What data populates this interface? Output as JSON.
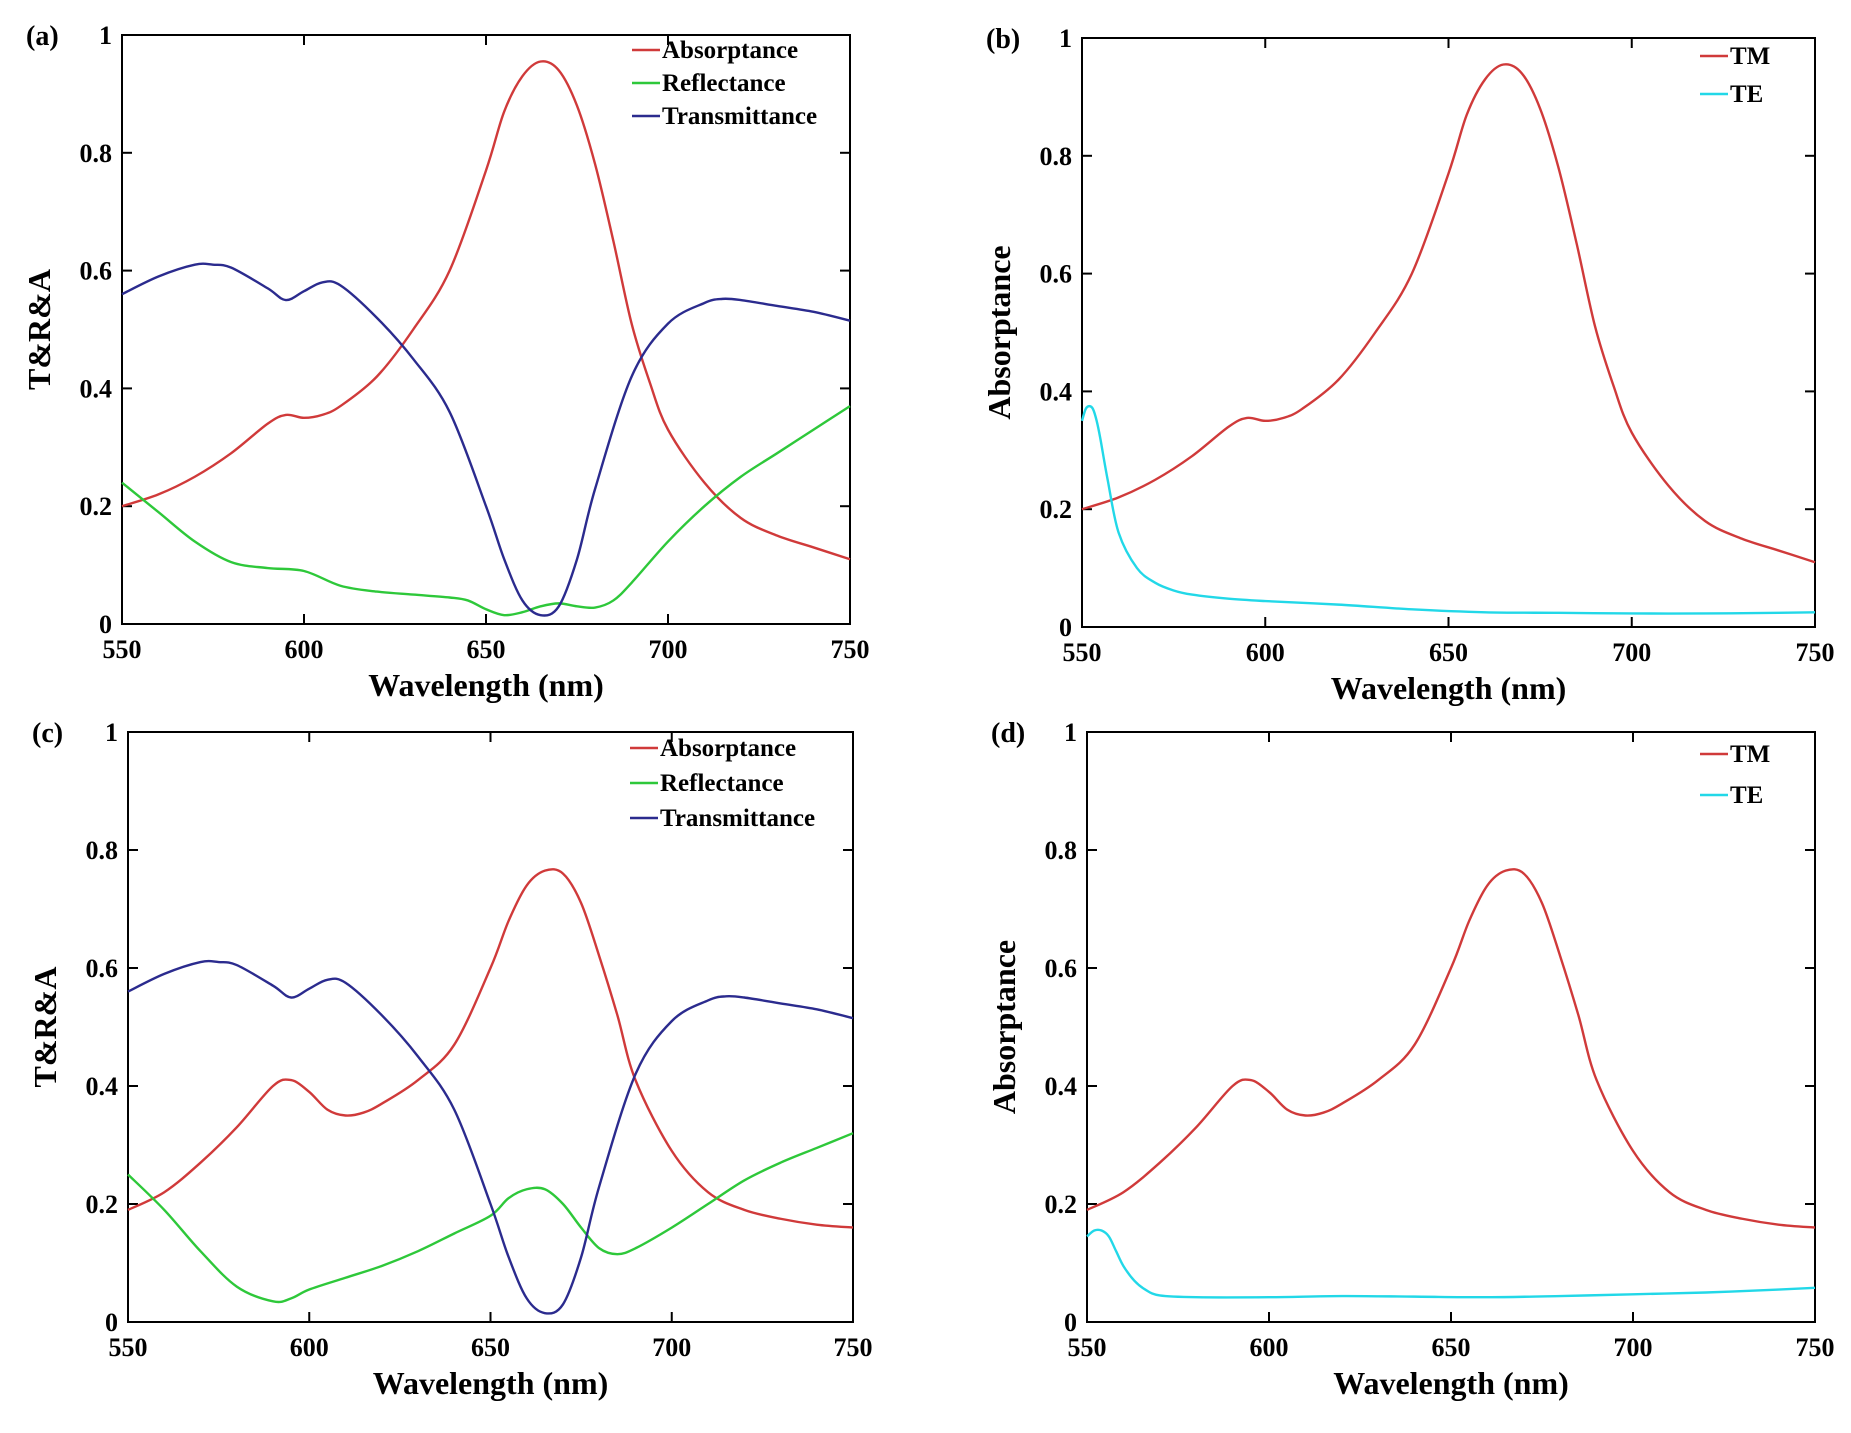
{
  "figure": {
    "panels": [
      {
        "id": "a",
        "tag": "(a)",
        "legend_position": "top-right"
      },
      {
        "id": "b",
        "tag": "(b)",
        "legend_position": "top-right"
      },
      {
        "id": "c",
        "tag": "(c)",
        "legend_position": "top-right"
      },
      {
        "id": "d",
        "tag": "(d)",
        "legend_position": "top-right"
      }
    ]
  },
  "chart_data": [
    {
      "panel": "a",
      "type": "line",
      "title": "",
      "xlabel": "Wavelength (nm)",
      "ylabel": "T&R&A",
      "xlim": [
        550,
        750
      ],
      "ylim": [
        0,
        1
      ],
      "xticks": [
        550,
        600,
        650,
        700,
        750
      ],
      "yticks": [
        0,
        0.2,
        0.4,
        0.6,
        0.8,
        1
      ],
      "ytick_labels": [
        "0",
        "0.2",
        "0.4",
        "0.6",
        "0.8",
        "1"
      ],
      "grid": false,
      "series": [
        {
          "name": "Absorptance",
          "color": "#d03a3a",
          "x": [
            550,
            560,
            570,
            580,
            590,
            595,
            600,
            605,
            610,
            620,
            630,
            640,
            650,
            655,
            660,
            665,
            670,
            675,
            680,
            685,
            690,
            695,
            700,
            710,
            720,
            730,
            740,
            750
          ],
          "y": [
            0.2,
            0.22,
            0.25,
            0.29,
            0.34,
            0.355,
            0.35,
            0.355,
            0.37,
            0.42,
            0.5,
            0.6,
            0.77,
            0.87,
            0.93,
            0.955,
            0.94,
            0.88,
            0.78,
            0.65,
            0.51,
            0.41,
            0.33,
            0.24,
            0.18,
            0.15,
            0.13,
            0.11
          ]
        },
        {
          "name": "Reflectance",
          "color": "#2ec83a",
          "x": [
            550,
            560,
            570,
            580,
            590,
            600,
            610,
            620,
            630,
            640,
            645,
            650,
            655,
            660,
            665,
            670,
            675,
            680,
            685,
            690,
            700,
            710,
            720,
            730,
            740,
            750
          ],
          "y": [
            0.24,
            0.19,
            0.14,
            0.105,
            0.095,
            0.09,
            0.065,
            0.055,
            0.05,
            0.045,
            0.04,
            0.025,
            0.015,
            0.02,
            0.03,
            0.035,
            0.03,
            0.028,
            0.04,
            0.07,
            0.14,
            0.2,
            0.25,
            0.29,
            0.33,
            0.37
          ]
        },
        {
          "name": "Transmittance",
          "color": "#2b2b8e",
          "x": [
            550,
            560,
            570,
            575,
            580,
            590,
            595,
            600,
            605,
            610,
            620,
            630,
            640,
            650,
            655,
            660,
            665,
            670,
            675,
            680,
            690,
            700,
            710,
            715,
            720,
            730,
            740,
            750
          ],
          "y": [
            0.56,
            0.59,
            0.61,
            0.61,
            0.605,
            0.57,
            0.55,
            0.565,
            0.58,
            0.575,
            0.52,
            0.45,
            0.36,
            0.2,
            0.11,
            0.04,
            0.015,
            0.03,
            0.11,
            0.23,
            0.42,
            0.51,
            0.545,
            0.552,
            0.55,
            0.54,
            0.53,
            0.515
          ]
        }
      ]
    },
    {
      "panel": "b",
      "type": "line",
      "title": "",
      "xlabel": "Wavelength (nm)",
      "ylabel": "Absorptance",
      "xlim": [
        550,
        750
      ],
      "ylim": [
        0,
        1
      ],
      "xticks": [
        550,
        600,
        650,
        700,
        750
      ],
      "yticks": [
        0,
        0.2,
        0.4,
        0.6,
        0.8,
        1
      ],
      "ytick_labels": [
        "0",
        "0.2",
        "0.4",
        "0.6",
        "0.8",
        "1"
      ],
      "grid": false,
      "series": [
        {
          "name": "TM",
          "color": "#d03a3a",
          "x": [
            550,
            560,
            570,
            580,
            590,
            595,
            600,
            605,
            610,
            620,
            630,
            640,
            650,
            655,
            660,
            665,
            670,
            675,
            680,
            685,
            690,
            695,
            700,
            710,
            720,
            730,
            740,
            750
          ],
          "y": [
            0.2,
            0.22,
            0.25,
            0.29,
            0.34,
            0.355,
            0.35,
            0.355,
            0.37,
            0.42,
            0.5,
            0.6,
            0.77,
            0.87,
            0.93,
            0.955,
            0.94,
            0.88,
            0.78,
            0.65,
            0.51,
            0.41,
            0.33,
            0.24,
            0.18,
            0.15,
            0.13,
            0.11
          ]
        },
        {
          "name": "TE",
          "color": "#22d8e8",
          "x": [
            550,
            551,
            552,
            553,
            554,
            555,
            557,
            560,
            565,
            570,
            575,
            580,
            590,
            600,
            620,
            640,
            660,
            680,
            700,
            720,
            740,
            750
          ],
          "y": [
            0.35,
            0.37,
            0.375,
            0.37,
            0.35,
            0.32,
            0.25,
            0.16,
            0.1,
            0.075,
            0.062,
            0.055,
            0.048,
            0.044,
            0.038,
            0.03,
            0.025,
            0.024,
            0.023,
            0.023,
            0.024,
            0.025
          ]
        }
      ]
    },
    {
      "panel": "c",
      "type": "line",
      "title": "",
      "xlabel": "Wavelength (nm)",
      "ylabel": "T&R&A",
      "xlim": [
        550,
        750
      ],
      "ylim": [
        0,
        1
      ],
      "xticks": [
        550,
        600,
        650,
        700,
        750
      ],
      "yticks": [
        0,
        0.2,
        0.4,
        0.6,
        0.8,
        1
      ],
      "ytick_labels": [
        "0",
        "0.2",
        "0.4",
        "0.6",
        "0.8",
        "1"
      ],
      "grid": false,
      "series": [
        {
          "name": "Absorptance",
          "color": "#d03a3a",
          "x": [
            550,
            560,
            570,
            580,
            590,
            595,
            600,
            605,
            610,
            615,
            620,
            630,
            640,
            650,
            655,
            660,
            665,
            670,
            675,
            680,
            685,
            690,
            700,
            710,
            720,
            730,
            740,
            750
          ],
          "y": [
            0.19,
            0.22,
            0.27,
            0.33,
            0.4,
            0.41,
            0.39,
            0.36,
            0.35,
            0.355,
            0.37,
            0.41,
            0.47,
            0.6,
            0.68,
            0.74,
            0.765,
            0.76,
            0.71,
            0.62,
            0.52,
            0.41,
            0.29,
            0.22,
            0.19,
            0.175,
            0.165,
            0.16
          ]
        },
        {
          "name": "Reflectance",
          "color": "#2ec83a",
          "x": [
            550,
            560,
            570,
            580,
            590,
            595,
            600,
            610,
            620,
            630,
            640,
            650,
            655,
            660,
            665,
            670,
            675,
            680,
            685,
            690,
            700,
            710,
            720,
            730,
            740,
            750
          ],
          "y": [
            0.25,
            0.19,
            0.12,
            0.06,
            0.035,
            0.04,
            0.055,
            0.075,
            0.095,
            0.12,
            0.15,
            0.18,
            0.21,
            0.225,
            0.225,
            0.2,
            0.16,
            0.125,
            0.115,
            0.125,
            0.16,
            0.2,
            0.24,
            0.27,
            0.295,
            0.32
          ]
        },
        {
          "name": "Transmittance",
          "color": "#2b2b8e",
          "x": [
            550,
            560,
            570,
            575,
            580,
            590,
            595,
            600,
            605,
            610,
            620,
            630,
            640,
            650,
            655,
            660,
            665,
            670,
            675,
            680,
            690,
            700,
            710,
            715,
            720,
            730,
            740,
            750
          ],
          "y": [
            0.56,
            0.59,
            0.61,
            0.61,
            0.605,
            0.57,
            0.55,
            0.565,
            0.58,
            0.575,
            0.52,
            0.45,
            0.36,
            0.2,
            0.11,
            0.04,
            0.015,
            0.03,
            0.11,
            0.23,
            0.42,
            0.51,
            0.545,
            0.552,
            0.55,
            0.54,
            0.53,
            0.515
          ]
        }
      ]
    },
    {
      "panel": "d",
      "type": "line",
      "title": "",
      "xlabel": "Wavelength (nm)",
      "ylabel": "Absorptance",
      "xlim": [
        550,
        750
      ],
      "ylim": [
        0,
        1
      ],
      "xticks": [
        550,
        600,
        650,
        700,
        750
      ],
      "yticks": [
        0,
        0.2,
        0.4,
        0.6,
        0.8,
        1
      ],
      "ytick_labels": [
        "0",
        "0.2",
        "0.4",
        "0.6",
        "0.8",
        "1"
      ],
      "grid": false,
      "series": [
        {
          "name": "TM",
          "color": "#d03a3a",
          "x": [
            550,
            560,
            570,
            580,
            590,
            595,
            600,
            605,
            610,
            615,
            620,
            630,
            640,
            650,
            655,
            660,
            665,
            670,
            675,
            680,
            685,
            690,
            700,
            710,
            720,
            730,
            740,
            750
          ],
          "y": [
            0.19,
            0.22,
            0.27,
            0.33,
            0.4,
            0.41,
            0.39,
            0.36,
            0.35,
            0.355,
            0.37,
            0.41,
            0.47,
            0.6,
            0.68,
            0.74,
            0.765,
            0.76,
            0.71,
            0.62,
            0.52,
            0.41,
            0.29,
            0.22,
            0.19,
            0.175,
            0.165,
            0.16
          ]
        },
        {
          "name": "TE",
          "color": "#22d8e8",
          "x": [
            550,
            552,
            554,
            556,
            558,
            560,
            563,
            566,
            570,
            580,
            600,
            620,
            640,
            660,
            680,
            700,
            720,
            740,
            750
          ],
          "y": [
            0.145,
            0.155,
            0.155,
            0.145,
            0.12,
            0.095,
            0.07,
            0.055,
            0.045,
            0.042,
            0.042,
            0.044,
            0.043,
            0.042,
            0.044,
            0.047,
            0.05,
            0.055,
            0.058
          ]
        }
      ]
    }
  ]
}
